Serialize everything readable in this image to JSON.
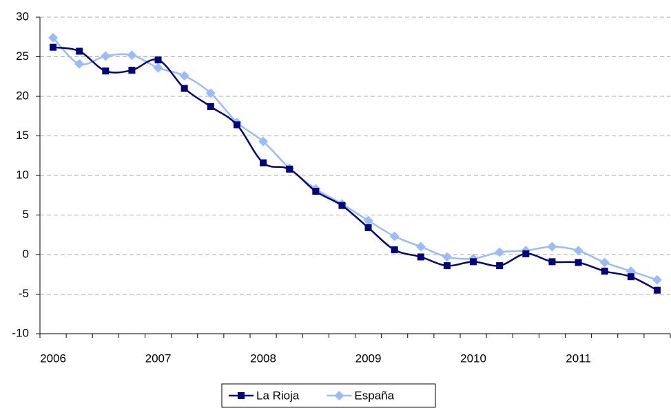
{
  "chart_data": {
    "type": "line",
    "categories": [
      "2006",
      null,
      null,
      null,
      "2007",
      null,
      null,
      null,
      "2008",
      null,
      null,
      null,
      "2009",
      null,
      null,
      null,
      "2010",
      null,
      null,
      null,
      "2011",
      null,
      null,
      null
    ],
    "series": [
      {
        "name": "La Rioja",
        "color": "#000080",
        "marker": "square",
        "values": [
          26.2,
          25.7,
          23.2,
          23.3,
          24.6,
          21.0,
          18.7,
          16.4,
          11.6,
          10.8,
          8.0,
          6.2,
          3.4,
          0.6,
          -0.3,
          -1.4,
          -0.9,
          -1.4,
          0.1,
          -0.9,
          -1.0,
          -2.1,
          -2.8,
          -4.5
        ]
      },
      {
        "name": "España",
        "color": "#99bbff",
        "marker": "diamond",
        "values": [
          27.4,
          24.1,
          25.1,
          25.2,
          23.6,
          22.6,
          20.4,
          16.7,
          14.3,
          10.9,
          8.3,
          6.4,
          4.3,
          2.3,
          1.0,
          -0.3,
          -0.5,
          0.3,
          0.5,
          1.0,
          0.5,
          -1.0,
          -2.1,
          -3.2
        ]
      }
    ],
    "ylim": [
      -10,
      30
    ],
    "yticks": [
      -10,
      -5,
      0,
      5,
      10,
      15,
      20,
      25,
      30
    ],
    "grid": true,
    "legend": "bottom"
  }
}
